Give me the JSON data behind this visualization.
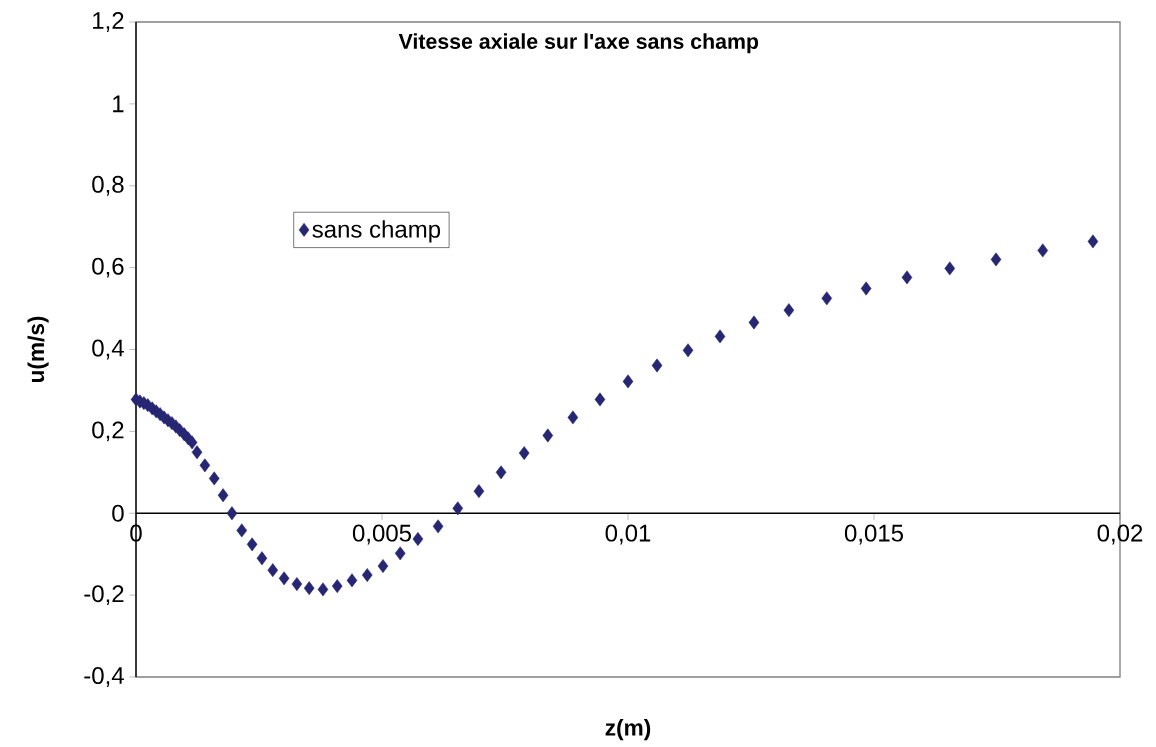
{
  "chart_data": {
    "type": "scatter",
    "title": "Vitesse axiale sur l'axe sans champ",
    "xlabel": "z(m)",
    "ylabel": "u(m/s)",
    "x": [
      0,
      8e-05,
      0.00016,
      0.00024,
      0.00033,
      0.00041,
      0.00049,
      0.00057,
      0.00065,
      0.00073,
      0.00081,
      0.00089,
      0.00098,
      0.00106,
      0.00114,
      0.00124,
      0.0014,
      0.00159,
      0.00177,
      0.00195,
      0.00215,
      0.00236,
      0.00256,
      0.00278,
      0.00301,
      0.00327,
      0.00352,
      0.0038,
      0.00409,
      0.00439,
      0.0047,
      0.00502,
      0.00537,
      0.00573,
      0.00614,
      0.00654,
      0.00697,
      0.00742,
      0.00789,
      0.00837,
      0.00888,
      0.00943,
      0.01,
      0.01059,
      0.01122,
      0.01187,
      0.01256,
      0.01327,
      0.01404,
      0.01484,
      0.01567,
      0.01654,
      0.01748,
      0.01843,
      0.01945
    ],
    "series": [
      {
        "name": "sans champ",
        "color": "#262673",
        "values": [
          0.278,
          0.273,
          0.269,
          0.264,
          0.256,
          0.249,
          0.242,
          0.234,
          0.227,
          0.22,
          0.212,
          0.203,
          0.193,
          0.183,
          0.173,
          0.149,
          0.117,
          0.085,
          0.044,
          0.0,
          -0.042,
          -0.076,
          -0.11,
          -0.139,
          -0.159,
          -0.173,
          -0.183,
          -0.186,
          -0.178,
          -0.164,
          -0.151,
          -0.129,
          -0.098,
          -0.063,
          -0.032,
          0.012,
          0.054,
          0.1,
          0.147,
          0.19,
          0.234,
          0.278,
          0.322,
          0.361,
          0.398,
          0.432,
          0.466,
          0.496,
          0.525,
          0.549,
          0.576,
          0.598,
          0.62,
          0.642,
          0.664
        ]
      }
    ],
    "marker": "diamond",
    "legend": "top left",
    "grid": false,
    "xlim": [
      0,
      0.02
    ],
    "ylim": [
      -0.4,
      1.2
    ],
    "xticks": [
      0,
      {
        "value": 0.005,
        "label": "0,005"
      },
      {
        "value": 0.01,
        "label": "0,01"
      },
      {
        "value": 0.015,
        "label": "0,015"
      },
      {
        "value": 0.02,
        "label": "0,02"
      }
    ],
    "yticks": [
      {
        "value": -0.4,
        "label": "-0,4"
      },
      {
        "value": -0.2,
        "label": "-0,2"
      },
      0,
      {
        "value": 0.2,
        "label": "0,2"
      },
      {
        "value": 0.4,
        "label": "0,4"
      },
      {
        "value": 0.6,
        "label": "0,6"
      },
      {
        "value": 0.8,
        "label": "0,8"
      },
      1,
      {
        "value": 1.2,
        "label": "1,2"
      }
    ]
  }
}
